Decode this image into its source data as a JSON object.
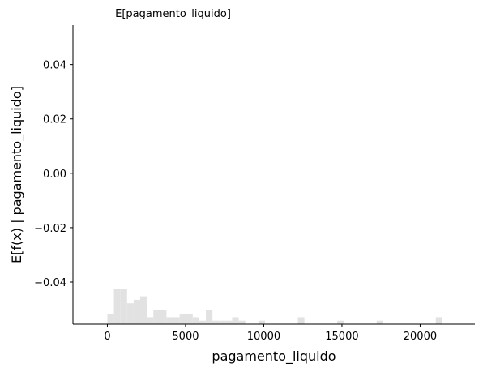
{
  "chart_data": {
    "type": "bar",
    "xlabel": "pagamento_liquido",
    "ylabel": "E[f(x) | pagamento_liquido]",
    "mean_label": "E[pagamento_liquido]",
    "mean_value": 4200,
    "xlim": [
      -2200,
      23500
    ],
    "ylim": [
      -0.0555,
      0.0545
    ],
    "xticks": [
      0,
      5000,
      10000,
      15000,
      20000
    ],
    "xtick_labels": [
      "0",
      "5000",
      "10000",
      "15000",
      "20000"
    ],
    "yticks": [
      0.04,
      0.02,
      0.0,
      -0.02,
      -0.04
    ],
    "ytick_labels": [
      "0.04",
      "0.02",
      "0.00",
      "−0.02",
      "−0.04"
    ],
    "histogram_color": "#e2e2e2",
    "mean_line_color": "#999999",
    "histogram": {
      "bin_width": 420,
      "bins": [
        {
          "x": 0,
          "count": 3
        },
        {
          "x": 420,
          "count": 10
        },
        {
          "x": 840,
          "count": 10
        },
        {
          "x": 1260,
          "count": 6
        },
        {
          "x": 1680,
          "count": 7
        },
        {
          "x": 2100,
          "count": 8
        },
        {
          "x": 2520,
          "count": 2
        },
        {
          "x": 2940,
          "count": 4
        },
        {
          "x": 3360,
          "count": 4
        },
        {
          "x": 3780,
          "count": 2
        },
        {
          "x": 4200,
          "count": 2
        },
        {
          "x": 4620,
          "count": 3
        },
        {
          "x": 5040,
          "count": 3
        },
        {
          "x": 5460,
          "count": 2
        },
        {
          "x": 5880,
          "count": 1
        },
        {
          "x": 6300,
          "count": 4
        },
        {
          "x": 6720,
          "count": 1
        },
        {
          "x": 7140,
          "count": 1
        },
        {
          "x": 7560,
          "count": 1
        },
        {
          "x": 7980,
          "count": 2
        },
        {
          "x": 8400,
          "count": 1
        },
        {
          "x": 9660,
          "count": 1
        },
        {
          "x": 12180,
          "count": 2
        },
        {
          "x": 14700,
          "count": 1
        },
        {
          "x": 17220,
          "count": 1
        },
        {
          "x": 21000,
          "count": 2
        }
      ]
    }
  }
}
